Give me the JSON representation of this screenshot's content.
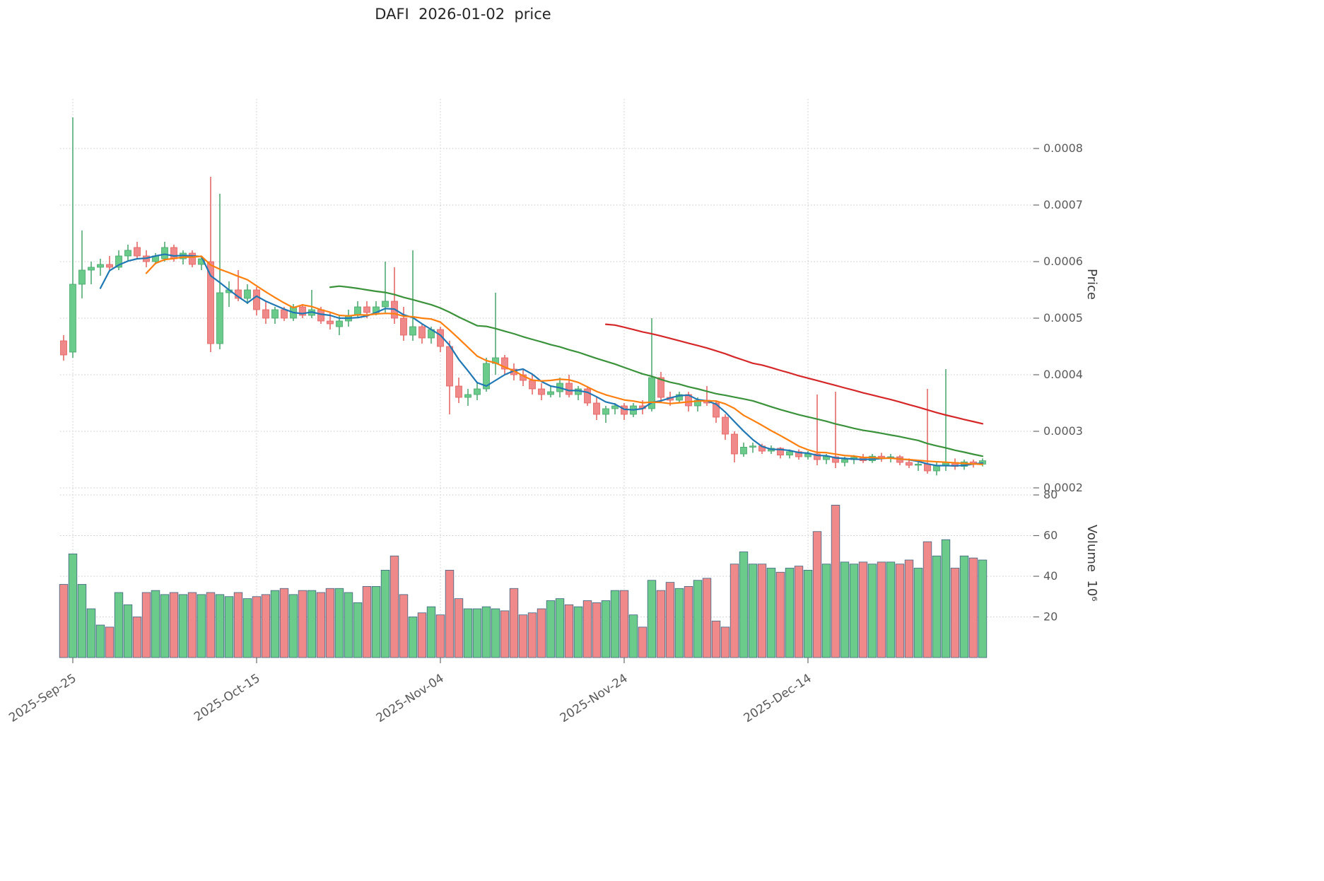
{
  "chart_data": {
    "type": "candlestick",
    "title": "DAFI  2026-01-02  price",
    "legend_position": "none",
    "grid": true,
    "price_axis": {
      "label": "Price",
      "side": "right",
      "range": [
        0.0002,
        0.00085
      ],
      "ticks": [
        {
          "label": "0.0002",
          "value": 0.0002
        },
        {
          "label": "0.0003",
          "value": 0.0003
        },
        {
          "label": "0.0004",
          "value": 0.0004
        },
        {
          "label": "0.0005",
          "value": 0.0005
        },
        {
          "label": "0.0006",
          "value": 0.0006
        },
        {
          "label": "0.0007",
          "value": 0.0007
        },
        {
          "label": "0.0008",
          "value": 0.0008
        }
      ]
    },
    "volume_axis": {
      "label": "Volume  10⁶",
      "side": "right",
      "range": [
        0,
        80
      ],
      "ticks": [
        20,
        40,
        60,
        80
      ],
      "volume_scale": 1000000
    },
    "x_axis": {
      "ticks": [
        {
          "label": "2025-Sep-25",
          "index": 1
        },
        {
          "label": "2025-Oct-15",
          "index": 21
        },
        {
          "label": "2025-Nov-04",
          "index": 41
        },
        {
          "label": "2025-Nov-24",
          "index": 61
        },
        {
          "label": "2025-Dec-14",
          "index": 81
        }
      ]
    },
    "moving_averages": [
      {
        "period": 5,
        "color": "#1f77b4"
      },
      {
        "period": 10,
        "color": "#ff7f0e"
      },
      {
        "period": 30,
        "color": "#3a923a"
      },
      {
        "period": 60,
        "color": "#d62728"
      }
    ],
    "colors": {
      "up": "#6bcb8b",
      "up_edge": "#46a56b",
      "down": "#f08a8a",
      "down_edge": "#e2605e",
      "volume_edge": "#3d6480",
      "grid": "#c8c8c8",
      "tick_text": "#5a5a5a",
      "title_text": "#262626",
      "background": "#ffffff"
    },
    "price_scale": 0.0001,
    "candles": {
      "columns": [
        "open",
        "high",
        "low",
        "close",
        "volume_millions"
      ],
      "note": "open/high/low/close are in units of price_scale (multiply by 0.0001 for price); volume in millions",
      "rows": [
        [
          4.6,
          4.7,
          4.25,
          4.35,
          36
        ],
        [
          4.4,
          8.55,
          4.3,
          5.6,
          51
        ],
        [
          5.6,
          6.55,
          5.35,
          5.85,
          36
        ],
        [
          5.85,
          6.0,
          5.6,
          5.9,
          24
        ],
        [
          5.9,
          6.05,
          5.75,
          5.95,
          16
        ],
        [
          5.95,
          6.1,
          5.85,
          5.9,
          15
        ],
        [
          5.9,
          6.2,
          5.85,
          6.1,
          32
        ],
        [
          6.1,
          6.3,
          6.0,
          6.2,
          26
        ],
        [
          6.25,
          6.35,
          6.05,
          6.1,
          20
        ],
        [
          6.1,
          6.2,
          5.9,
          6.0,
          32
        ],
        [
          6.0,
          6.15,
          5.95,
          6.1,
          33
        ],
        [
          6.05,
          6.35,
          6.0,
          6.25,
          31
        ],
        [
          6.25,
          6.3,
          6.0,
          6.05,
          32
        ],
        [
          6.05,
          6.2,
          5.95,
          6.15,
          31
        ],
        [
          6.15,
          6.2,
          5.9,
          5.95,
          32
        ],
        [
          5.95,
          6.1,
          5.85,
          6.05,
          31
        ],
        [
          6.0,
          7.5,
          4.4,
          4.55,
          32
        ],
        [
          4.55,
          7.2,
          4.45,
          5.45,
          31
        ],
        [
          5.45,
          5.65,
          5.2,
          5.5,
          30
        ],
        [
          5.5,
          5.85,
          5.3,
          5.35,
          32
        ],
        [
          5.35,
          5.6,
          5.25,
          5.5,
          29
        ],
        [
          5.5,
          5.55,
          5.05,
          5.15,
          30
        ],
        [
          5.15,
          5.3,
          4.9,
          5.0,
          31
        ],
        [
          5.0,
          5.2,
          4.9,
          5.15,
          33
        ],
        [
          5.15,
          5.2,
          4.95,
          5.0,
          34
        ],
        [
          5.0,
          5.25,
          4.95,
          5.2,
          31
        ],
        [
          5.2,
          5.25,
          5.0,
          5.05,
          33
        ],
        [
          5.05,
          5.5,
          5.0,
          5.15,
          33
        ],
        [
          5.15,
          5.2,
          4.9,
          4.95,
          32
        ],
        [
          4.95,
          5.1,
          4.8,
          4.9,
          34
        ],
        [
          4.85,
          5.05,
          4.7,
          4.95,
          34
        ],
        [
          4.95,
          5.15,
          4.85,
          5.05,
          32
        ],
        [
          5.05,
          5.3,
          5.0,
          5.2,
          27
        ],
        [
          5.2,
          5.3,
          5.0,
          5.1,
          35
        ],
        [
          5.1,
          5.3,
          5.05,
          5.2,
          35
        ],
        [
          5.2,
          6.0,
          5.1,
          5.3,
          43
        ],
        [
          5.3,
          5.9,
          4.9,
          5.0,
          50
        ],
        [
          5.0,
          5.2,
          4.6,
          4.7,
          31
        ],
        [
          4.7,
          6.2,
          4.6,
          4.85,
          20
        ],
        [
          4.85,
          4.9,
          4.55,
          4.65,
          22
        ],
        [
          4.65,
          4.85,
          4.55,
          4.8,
          25
        ],
        [
          4.8,
          4.85,
          4.4,
          4.5,
          21
        ],
        [
          4.5,
          4.6,
          3.3,
          3.8,
          43
        ],
        [
          3.8,
          3.95,
          3.5,
          3.6,
          29
        ],
        [
          3.6,
          3.75,
          3.45,
          3.65,
          24
        ],
        [
          3.65,
          3.85,
          3.55,
          3.75,
          24
        ],
        [
          3.75,
          4.3,
          3.7,
          4.2,
          25
        ],
        [
          4.2,
          5.45,
          4.0,
          4.3,
          24
        ],
        [
          4.3,
          4.35,
          4.0,
          4.1,
          23
        ],
        [
          4.1,
          4.2,
          3.9,
          4.0,
          34
        ],
        [
          4.0,
          4.1,
          3.8,
          3.9,
          21
        ],
        [
          3.9,
          4.0,
          3.65,
          3.75,
          22
        ],
        [
          3.75,
          3.85,
          3.55,
          3.65,
          24
        ],
        [
          3.65,
          3.8,
          3.6,
          3.7,
          28
        ],
        [
          3.7,
          3.95,
          3.6,
          3.85,
          29
        ],
        [
          3.85,
          4.0,
          3.6,
          3.65,
          26
        ],
        [
          3.65,
          3.8,
          3.55,
          3.75,
          25
        ],
        [
          3.75,
          3.8,
          3.45,
          3.5,
          28
        ],
        [
          3.5,
          3.6,
          3.2,
          3.3,
          27
        ],
        [
          3.3,
          3.45,
          3.15,
          3.4,
          28
        ],
        [
          3.4,
          3.5,
          3.3,
          3.45,
          33
        ],
        [
          3.45,
          3.5,
          3.2,
          3.3,
          33
        ],
        [
          3.3,
          3.5,
          3.25,
          3.45,
          21
        ],
        [
          3.45,
          3.55,
          3.3,
          3.4,
          15
        ],
        [
          3.4,
          5.0,
          3.35,
          3.95,
          38
        ],
        [
          3.95,
          4.05,
          3.5,
          3.6,
          33
        ],
        [
          3.6,
          3.7,
          3.45,
          3.55,
          37
        ],
        [
          3.55,
          3.7,
          3.5,
          3.65,
          34
        ],
        [
          3.65,
          3.7,
          3.35,
          3.45,
          35
        ],
        [
          3.45,
          3.6,
          3.35,
          3.55,
          38
        ],
        [
          3.55,
          3.8,
          3.45,
          3.5,
          39
        ],
        [
          3.5,
          3.55,
          3.15,
          3.25,
          18
        ],
        [
          3.25,
          3.3,
          2.85,
          2.95,
          15
        ],
        [
          2.95,
          3.0,
          2.45,
          2.6,
          46
        ],
        [
          2.6,
          2.8,
          2.55,
          2.72,
          52
        ],
        [
          2.72,
          2.8,
          2.62,
          2.74,
          46
        ],
        [
          2.74,
          2.78,
          2.6,
          2.65,
          46
        ],
        [
          2.65,
          2.75,
          2.6,
          2.7,
          44
        ],
        [
          2.7,
          2.72,
          2.52,
          2.58,
          42
        ],
        [
          2.58,
          2.68,
          2.52,
          2.64,
          44
        ],
        [
          2.64,
          2.68,
          2.5,
          2.55,
          45
        ],
        [
          2.55,
          2.65,
          2.5,
          2.6,
          43
        ],
        [
          2.6,
          3.65,
          2.4,
          2.5,
          62
        ],
        [
          2.5,
          2.6,
          2.42,
          2.55,
          46
        ],
        [
          2.55,
          3.7,
          2.35,
          2.45,
          75
        ],
        [
          2.45,
          2.55,
          2.38,
          2.5,
          47
        ],
        [
          2.5,
          2.58,
          2.42,
          2.54,
          46
        ],
        [
          2.54,
          2.6,
          2.44,
          2.48,
          47
        ],
        [
          2.48,
          2.6,
          2.44,
          2.56,
          46
        ],
        [
          2.56,
          2.62,
          2.46,
          2.52,
          47
        ],
        [
          2.52,
          2.6,
          2.45,
          2.55,
          47
        ],
        [
          2.55,
          2.58,
          2.4,
          2.45,
          46
        ],
        [
          2.45,
          2.52,
          2.35,
          2.4,
          48
        ],
        [
          2.4,
          2.48,
          2.3,
          2.42,
          44
        ],
        [
          2.42,
          3.75,
          2.25,
          2.3,
          57
        ],
        [
          2.3,
          2.45,
          2.22,
          2.4,
          50
        ],
        [
          2.4,
          4.1,
          2.3,
          2.45,
          58
        ],
        [
          2.45,
          2.52,
          2.32,
          2.38,
          44
        ],
        [
          2.38,
          2.5,
          2.32,
          2.46,
          50
        ],
        [
          2.46,
          2.5,
          2.36,
          2.42,
          49
        ],
        [
          2.42,
          2.52,
          2.38,
          2.48,
          48
        ]
      ]
    }
  }
}
